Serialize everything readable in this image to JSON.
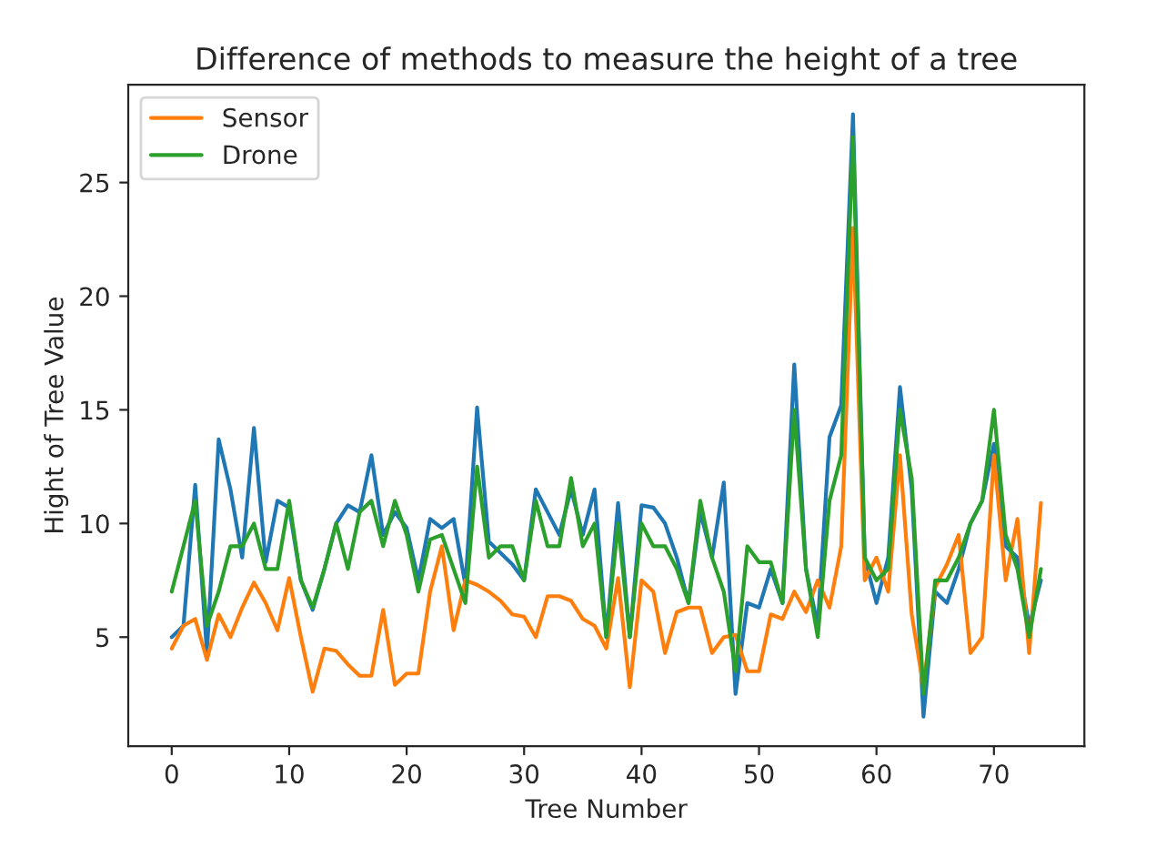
{
  "chart_data": {
    "type": "line",
    "title": "Difference of methods to measure the height of a tree",
    "xlabel": "Tree Number",
    "ylabel": "Hight of Tree Value",
    "x": [
      0,
      1,
      2,
      3,
      4,
      5,
      6,
      7,
      8,
      9,
      10,
      11,
      12,
      13,
      14,
      15,
      16,
      17,
      18,
      19,
      20,
      21,
      22,
      23,
      24,
      25,
      26,
      27,
      28,
      29,
      30,
      31,
      32,
      33,
      34,
      35,
      36,
      37,
      38,
      39,
      40,
      41,
      42,
      43,
      44,
      45,
      46,
      47,
      48,
      49,
      50,
      51,
      52,
      53,
      54,
      55,
      56,
      57,
      58,
      59,
      60,
      61,
      62,
      63,
      64,
      65,
      66,
      67,
      68,
      69,
      70,
      71,
      72,
      73,
      74
    ],
    "series": [
      {
        "color": "#1f77b4",
        "values": [
          5,
          5.5,
          11.7,
          4.3,
          13.7,
          11.5,
          8.5,
          14.2,
          8.3,
          11,
          10.7,
          7.5,
          6.2,
          8,
          10,
          10.8,
          10.5,
          13,
          9.5,
          10.5,
          9.8,
          7.5,
          10.2,
          9.8,
          10.2,
          7.3,
          15.1,
          9.2,
          8.7,
          8.2,
          7.5,
          11.5,
          10.5,
          9.5,
          11.5,
          9.5,
          11.5,
          5,
          10.9,
          5,
          10.8,
          10.7,
          10,
          8.5,
          6.5,
          10.5,
          8.5,
          11.8,
          2.5,
          6.5,
          6.3,
          8,
          6.5,
          17,
          8,
          5.5,
          13.8,
          15.2,
          28,
          8.5,
          6.5,
          8.5,
          16,
          11.5,
          1.5,
          7,
          6.5,
          8,
          10,
          11,
          13.5,
          9,
          8.5,
          5.5,
          7.5
        ]
      },
      {
        "name": "Sensor",
        "color": "#ff7f0e",
        "values": [
          4.5,
          5.5,
          5.8,
          4,
          6,
          5,
          6.3,
          7.4,
          6.5,
          5.3,
          7.6,
          5,
          2.6,
          4.5,
          4.4,
          3.8,
          3.3,
          3.3,
          6.2,
          2.9,
          3.4,
          3.4,
          7,
          9,
          5.3,
          7.5,
          7.3,
          7,
          6.6,
          6,
          5.9,
          5,
          6.8,
          6.8,
          6.6,
          5.8,
          5.5,
          4.5,
          7.6,
          2.8,
          7.5,
          7,
          4.3,
          6.1,
          6.3,
          6.3,
          4.3,
          5,
          5.1,
          3.5,
          3.5,
          6,
          5.8,
          7,
          6.1,
          7.5,
          6.3,
          9,
          23,
          7.5,
          8.5,
          7,
          13,
          6,
          2.8,
          7.2,
          8.2,
          9.5,
          4.3,
          5,
          13,
          7.5,
          10.2,
          4.3,
          10.9
        ]
      },
      {
        "name": "Drone",
        "color": "#2ca02c",
        "values": [
          7,
          9,
          11,
          5.5,
          7,
          9,
          9,
          10,
          8,
          8,
          11,
          7.5,
          6.3,
          8,
          10,
          8,
          10.5,
          11,
          9,
          11,
          9.5,
          7,
          9.3,
          9.5,
          8,
          6.5,
          12.5,
          8.5,
          9,
          9,
          7.5,
          11,
          9,
          9,
          12,
          9,
          10,
          5,
          10,
          5,
          10,
          9,
          9,
          8,
          6.5,
          11,
          8.5,
          7,
          3.5,
          9,
          8.3,
          8.3,
          6.5,
          15,
          8,
          5,
          11,
          13,
          27,
          8.5,
          7.5,
          8,
          15,
          12,
          2.5,
          7.5,
          7.5,
          8.5,
          10,
          11,
          15,
          9.5,
          8,
          5,
          8
        ]
      }
    ],
    "xlim": [
      -3.7,
      77.7
    ],
    "ylim": [
      0.2,
      29.3
    ],
    "xticks": [
      0,
      10,
      20,
      30,
      40,
      50,
      60,
      70
    ],
    "yticks": [
      5,
      10,
      15,
      20,
      25
    ],
    "legend": "top left",
    "grid": false
  }
}
